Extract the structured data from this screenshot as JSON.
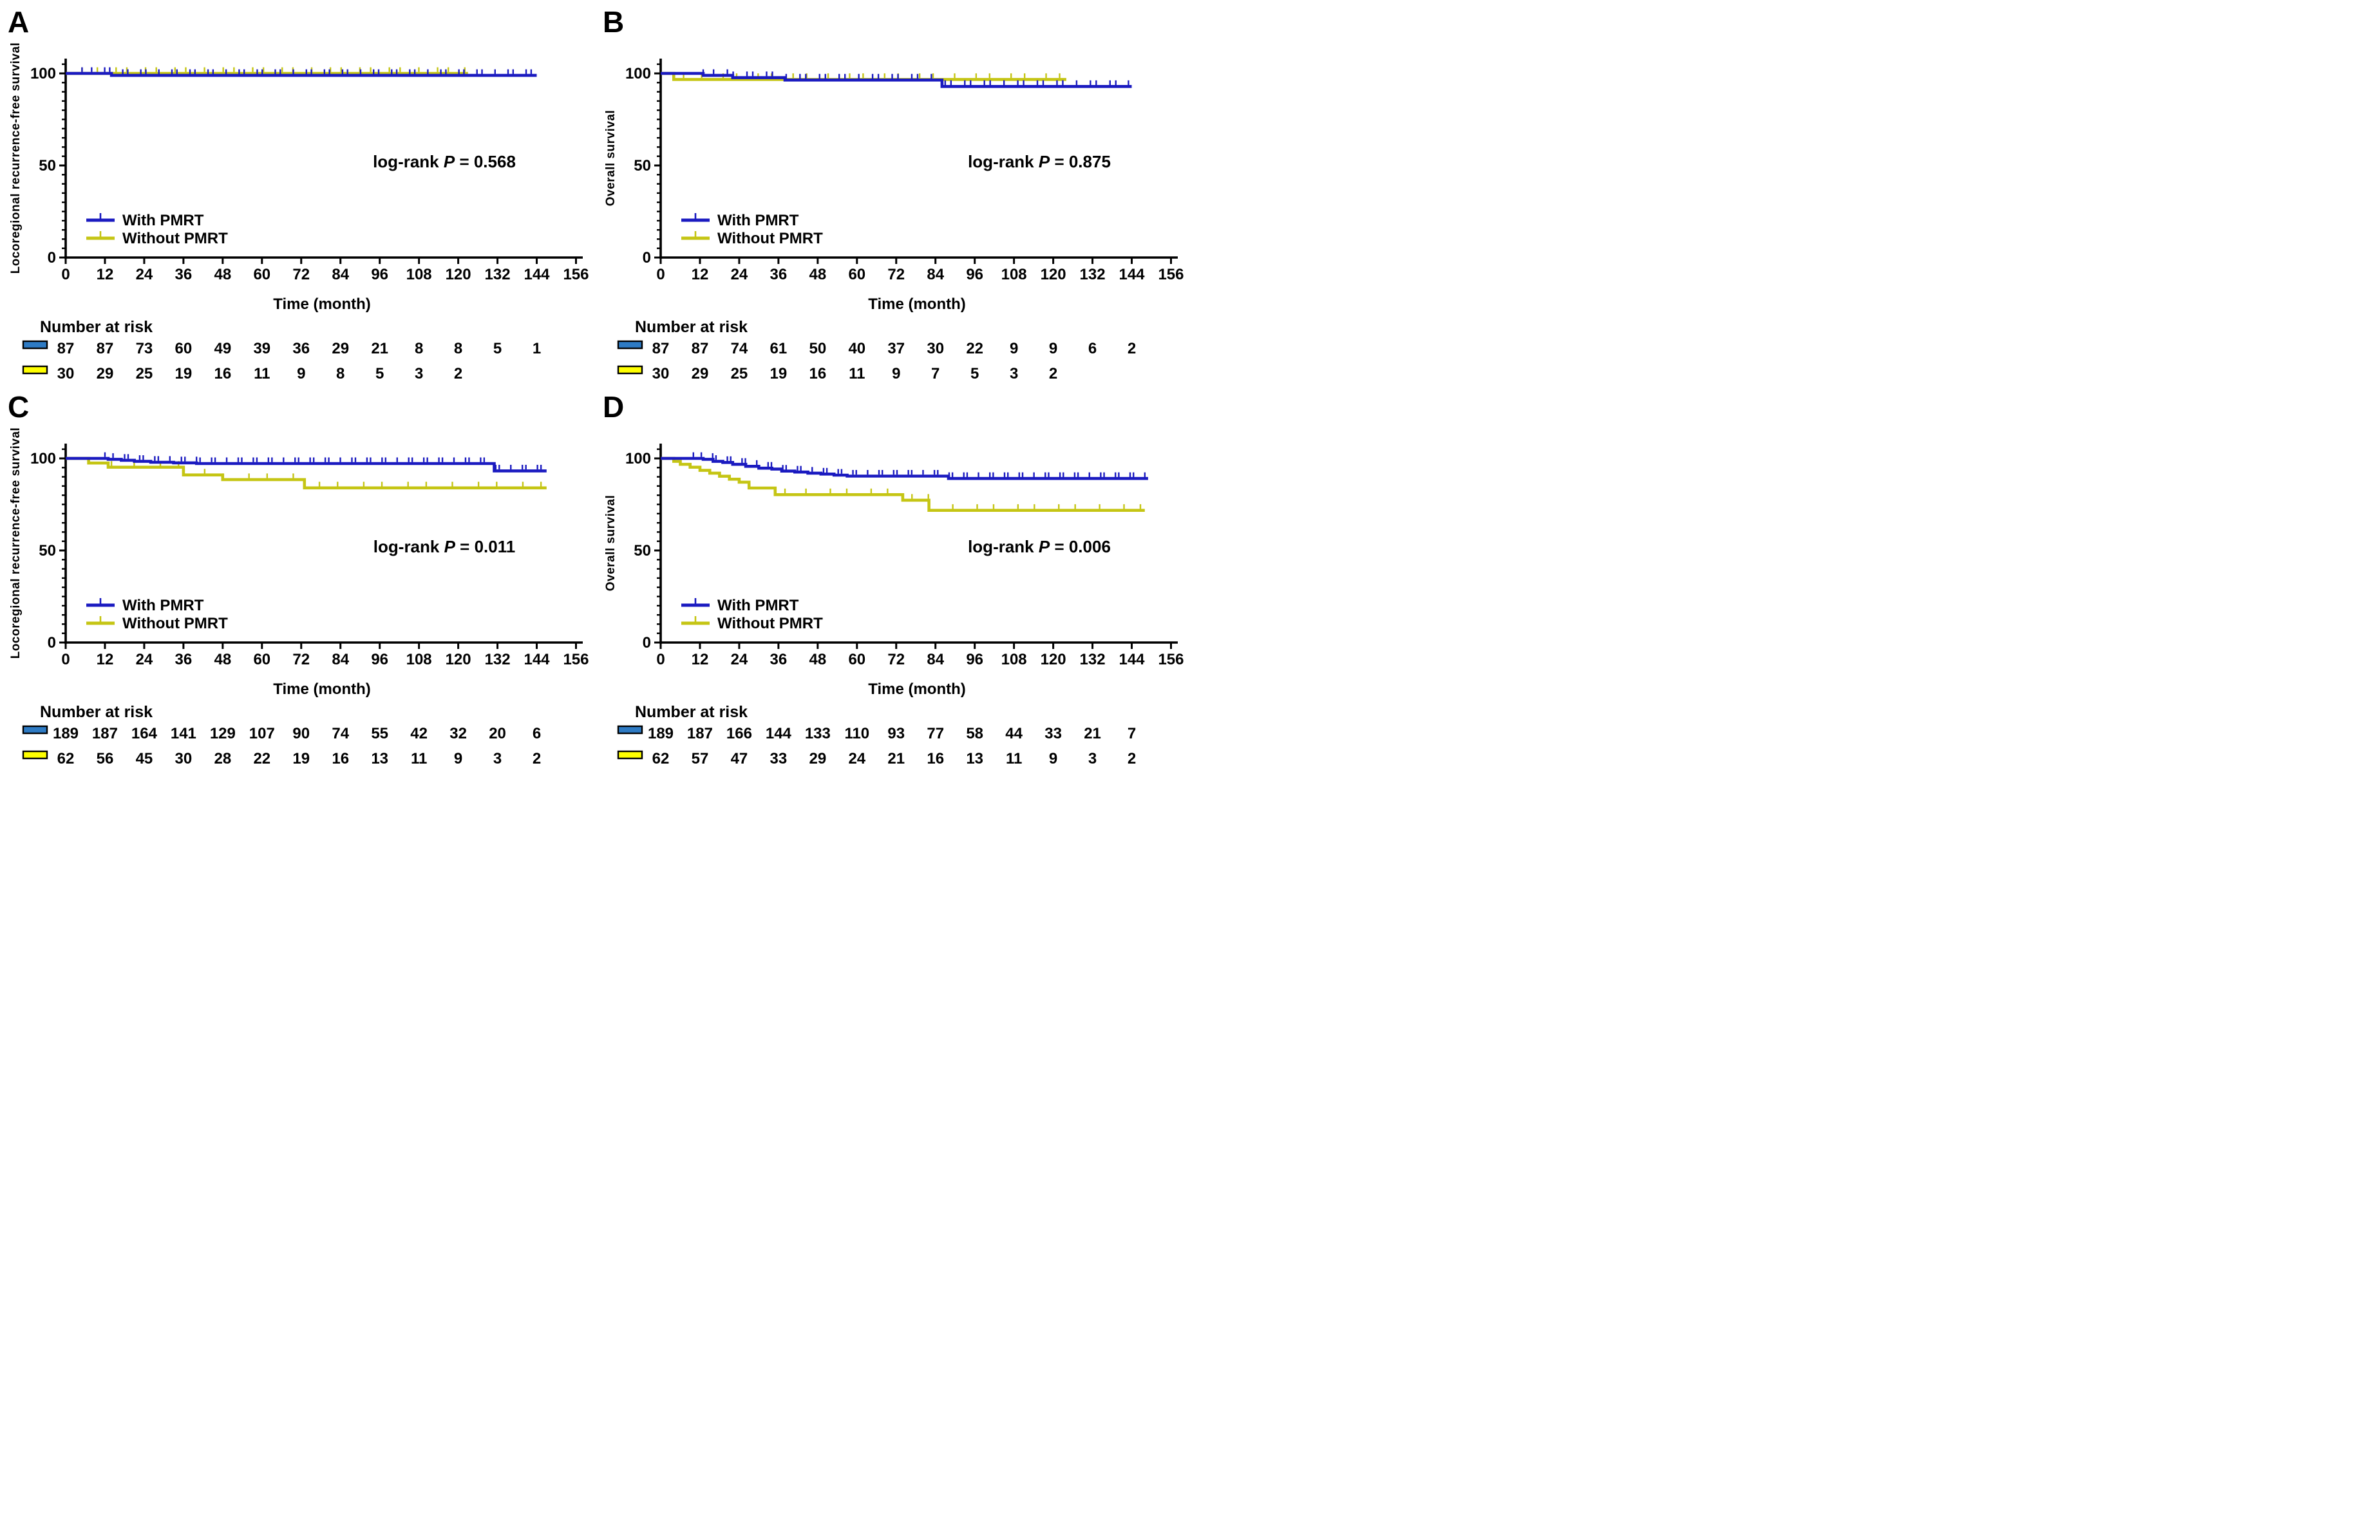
{
  "chart_data": {
    "figure_type": "kaplan-meier-multipanel",
    "colors": {
      "blue": "#1a1ac0",
      "yellow": "#c5c514",
      "risk_blue": "#2e7bc4",
      "risk_yellow": "#ffff00",
      "axis": "#000000"
    },
    "panels": [
      {
        "panel_label": "A",
        "type": "line",
        "subtype": "kaplan-meier-step",
        "xlabel": "Time (month)",
        "ylabel": "Locoregional recurrence-free survival",
        "xlim": [
          0,
          158
        ],
        "ylim": [
          0,
          108
        ],
        "x_ticks": [
          0,
          12,
          24,
          36,
          48,
          60,
          72,
          84,
          96,
          108,
          120,
          132,
          144,
          156
        ],
        "y_ticks_major": [
          0,
          50,
          100
        ],
        "y_minor_step": 5,
        "annotation": {
          "text_prefix": "log-rank",
          "p_symbol": "P",
          "text_suffix": "= 0.568"
        },
        "legend": [
          {
            "label": "With PMRT",
            "color_key": "blue"
          },
          {
            "label": "Without PMRT",
            "color_key": "yellow"
          }
        ],
        "series": [
          {
            "name": "Without PMRT",
            "color_key": "yellow",
            "steps": [
              [
                0,
                100
              ],
              [
                123,
                100
              ]
            ],
            "censors": {
              "from": 5,
              "to": 122,
              "count": 26
            }
          },
          {
            "name": "With PMRT",
            "color_key": "blue",
            "steps": [
              [
                0,
                100
              ],
              [
                14,
                98.9
              ],
              [
                144,
                98.9
              ]
            ],
            "censors": {
              "from": 5,
              "to": 143,
              "count": 48
            }
          }
        ],
        "number_at_risk": {
          "title": "Number at risk",
          "months": [
            0,
            12,
            24,
            36,
            48,
            60,
            72,
            84,
            96,
            108,
            120,
            132,
            144
          ],
          "rows": [
            {
              "color_key": "blue",
              "values": [
                87,
                87,
                73,
                60,
                49,
                39,
                36,
                29,
                21,
                8,
                8,
                5,
                1
              ]
            },
            {
              "color_key": "yellow",
              "values": [
                30,
                29,
                25,
                19,
                16,
                11,
                9,
                8,
                5,
                3,
                2
              ]
            }
          ]
        }
      },
      {
        "panel_label": "B",
        "type": "line",
        "subtype": "kaplan-meier-step",
        "xlabel": "Time (month)",
        "ylabel": "Overall survival",
        "xlim": [
          0,
          158
        ],
        "ylim": [
          0,
          108
        ],
        "x_ticks": [
          0,
          12,
          24,
          36,
          48,
          60,
          72,
          84,
          96,
          108,
          120,
          132,
          144,
          156
        ],
        "y_ticks_major": [
          0,
          50,
          100
        ],
        "y_minor_step": 5,
        "annotation": {
          "text_prefix": "log-rank",
          "p_symbol": "P",
          "text_suffix": "= 0.875"
        },
        "legend": [
          {
            "label": "With PMRT",
            "color_key": "blue"
          },
          {
            "label": "Without PMRT",
            "color_key": "yellow"
          }
        ],
        "series": [
          {
            "name": "Without PMRT",
            "color_key": "yellow",
            "steps": [
              [
                0,
                100
              ],
              [
                4,
                96.7
              ],
              [
                124,
                96.7
              ]
            ],
            "censors": {
              "from": 7,
              "to": 123,
              "count": 22
            }
          },
          {
            "name": "With PMRT",
            "color_key": "blue",
            "steps": [
              [
                0,
                100
              ],
              [
                13,
                98.9
              ],
              [
                22,
                97.7
              ],
              [
                38,
                96.4
              ],
              [
                86,
                92.9
              ],
              [
                144,
                92.9
              ]
            ],
            "censors": {
              "from": 13,
              "to": 143,
              "count": 42
            }
          }
        ],
        "number_at_risk": {
          "title": "Number at risk",
          "months": [
            0,
            12,
            24,
            36,
            48,
            60,
            72,
            84,
            96,
            108,
            120,
            132,
            144
          ],
          "rows": [
            {
              "color_key": "blue",
              "values": [
                87,
                87,
                74,
                61,
                50,
                40,
                37,
                30,
                22,
                9,
                9,
                6,
                2
              ]
            },
            {
              "color_key": "yellow",
              "values": [
                30,
                29,
                25,
                19,
                16,
                11,
                9,
                7,
                5,
                3,
                2
              ]
            }
          ]
        }
      },
      {
        "panel_label": "C",
        "type": "line",
        "subtype": "kaplan-meier-step",
        "xlabel": "Time (month)",
        "ylabel": "Locoregional recurrence-free survival",
        "xlim": [
          0,
          158
        ],
        "ylim": [
          0,
          108
        ],
        "x_ticks": [
          0,
          12,
          24,
          36,
          48,
          60,
          72,
          84,
          96,
          108,
          120,
          132,
          144,
          156
        ],
        "y_ticks_major": [
          0,
          50,
          100
        ],
        "y_minor_step": 5,
        "annotation": {
          "text_prefix": "log-rank",
          "p_symbol": "P",
          "text_suffix": "= 0.011"
        },
        "legend": [
          {
            "label": "With PMRT",
            "color_key": "blue"
          },
          {
            "label": "Without PMRT",
            "color_key": "yellow"
          }
        ],
        "series": [
          {
            "name": "Without PMRT",
            "color_key": "yellow",
            "steps": [
              [
                0,
                100
              ],
              [
                7,
                97.5
              ],
              [
                13,
                95.2
              ],
              [
                36,
                91
              ],
              [
                48,
                88.5
              ],
              [
                73,
                84
              ],
              [
                147,
                84
              ]
            ],
            "censors": {
              "from": 14,
              "to": 146,
              "count": 20
            }
          },
          {
            "name": "With PMRT",
            "color_key": "blue",
            "steps": [
              [
                0,
                100
              ],
              [
                13,
                99.5
              ],
              [
                17,
                99
              ],
              [
                21,
                98.4
              ],
              [
                26,
                97.9
              ],
              [
                33,
                97.6
              ],
              [
                40,
                97.2
              ],
              [
                131,
                93.2
              ],
              [
                147,
                93.2
              ]
            ],
            "censors": {
              "from": 12,
              "to": 146,
              "count": 55
            }
          }
        ],
        "number_at_risk": {
          "title": "Number at risk",
          "months": [
            0,
            12,
            24,
            36,
            48,
            60,
            72,
            84,
            96,
            108,
            120,
            132,
            144
          ],
          "rows": [
            {
              "color_key": "blue",
              "values": [
                189,
                187,
                164,
                141,
                129,
                107,
                90,
                74,
                55,
                42,
                32,
                20,
                6
              ]
            },
            {
              "color_key": "yellow",
              "values": [
                62,
                56,
                45,
                30,
                28,
                22,
                19,
                16,
                13,
                11,
                9,
                3,
                2
              ]
            }
          ]
        }
      },
      {
        "panel_label": "D",
        "type": "line",
        "subtype": "kaplan-meier-step",
        "xlabel": "Time (month)",
        "ylabel": "Overall survival",
        "xlim": [
          0,
          158
        ],
        "ylim": [
          0,
          108
        ],
        "x_ticks": [
          0,
          12,
          24,
          36,
          48,
          60,
          72,
          84,
          96,
          108,
          120,
          132,
          144,
          156
        ],
        "y_ticks_major": [
          0,
          50,
          100
        ],
        "y_minor_step": 5,
        "annotation": {
          "text_prefix": "log-rank",
          "p_symbol": "P",
          "text_suffix": "= 0.006"
        },
        "legend": [
          {
            "label": "With PMRT",
            "color_key": "blue"
          },
          {
            "label": "Without PMRT",
            "color_key": "yellow"
          }
        ],
        "series": [
          {
            "name": "Without PMRT",
            "color_key": "yellow",
            "steps": [
              [
                0,
                100
              ],
              [
                4,
                98.4
              ],
              [
                6,
                96.8
              ],
              [
                9,
                95.2
              ],
              [
                12,
                93.5
              ],
              [
                15,
                92
              ],
              [
                18,
                90.3
              ],
              [
                21,
                88.7
              ],
              [
                24,
                87.1
              ],
              [
                27,
                83.9
              ],
              [
                35,
                80.3
              ],
              [
                74,
                77.3
              ],
              [
                82,
                71.8
              ],
              [
                148,
                71.8
              ]
            ],
            "censors": {
              "from": 38,
              "to": 147,
              "count": 18
            }
          },
          {
            "name": "With PMRT",
            "color_key": "blue",
            "steps": [
              [
                0,
                100
              ],
              [
                13,
                99.5
              ],
              [
                16,
                98.4
              ],
              [
                19,
                97.8
              ],
              [
                22,
                96.8
              ],
              [
                26,
                95.7
              ],
              [
                30,
                94.7
              ],
              [
                34,
                94.2
              ],
              [
                37,
                93.1
              ],
              [
                41,
                92.6
              ],
              [
                45,
                92
              ],
              [
                49,
                91.5
              ],
              [
                53,
                90.9
              ],
              [
                57,
                90.4
              ],
              [
                88,
                89.1
              ],
              [
                149,
                89.1
              ]
            ],
            "censors": {
              "from": 10,
              "to": 148,
              "count": 58
            }
          }
        ],
        "number_at_risk": {
          "title": "Number at risk",
          "months": [
            0,
            12,
            24,
            36,
            48,
            60,
            72,
            84,
            96,
            108,
            120,
            132,
            144
          ],
          "rows": [
            {
              "color_key": "blue",
              "values": [
                189,
                187,
                166,
                144,
                133,
                110,
                93,
                77,
                58,
                44,
                33,
                21,
                7
              ]
            },
            {
              "color_key": "yellow",
              "values": [
                62,
                57,
                47,
                33,
                29,
                24,
                21,
                16,
                13,
                11,
                9,
                3,
                2
              ]
            }
          ]
        }
      }
    ]
  }
}
